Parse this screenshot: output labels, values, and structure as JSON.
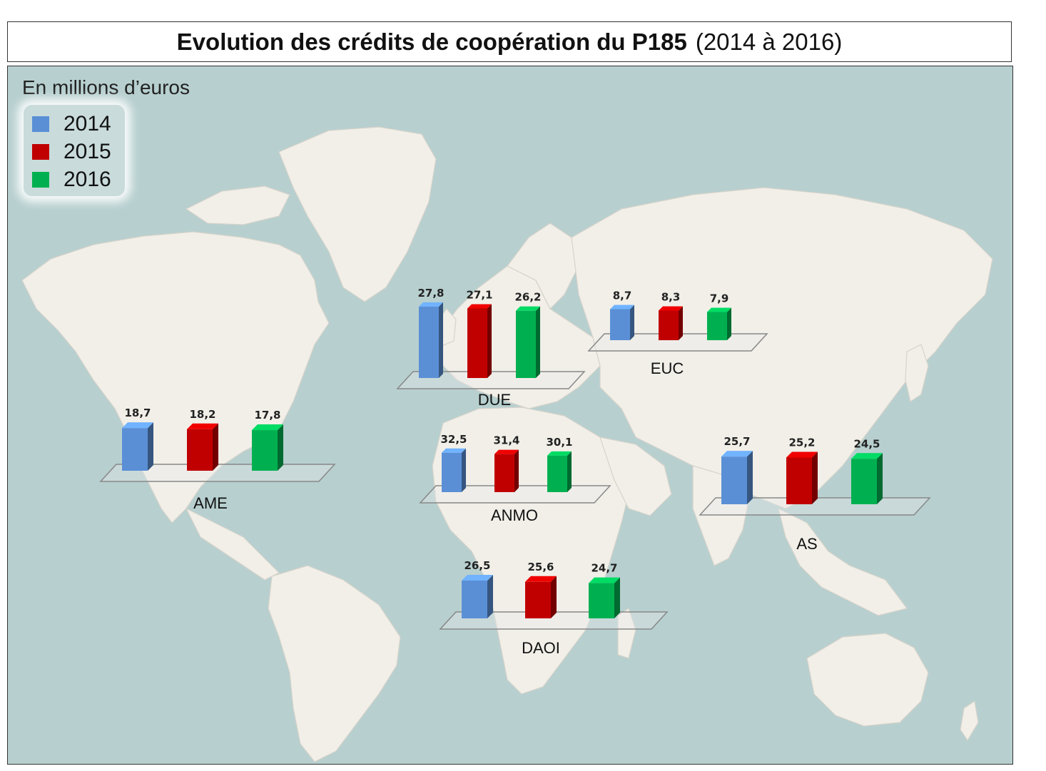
{
  "title": {
    "bold": "Evolution des crédits de coopération du P185",
    "normal": "(2014 à 2016)"
  },
  "unit_label": "En millions d’euros",
  "colors": {
    "ocean": "#b7cfcf",
    "land": "#f1efe8",
    "border": "#d6d3cb",
    "y2014": "#5a8fd6",
    "y2015": "#c00000",
    "y2016": "#00b050"
  },
  "legend": [
    {
      "year": "2014",
      "color": "#5a8fd6"
    },
    {
      "year": "2015",
      "color": "#c00000"
    },
    {
      "year": "2016",
      "color": "#00b050"
    }
  ],
  "chart_data": {
    "type": "bar",
    "categories": [
      "2014",
      "2015",
      "2016"
    ],
    "regions": [
      {
        "name": "DUE",
        "values": [
          27.8,
          27.1,
          26.2
        ],
        "labels": [
          "27,8",
          "27,1",
          "26,2"
        ]
      },
      {
        "name": "EUC",
        "values": [
          8.7,
          8.3,
          7.9
        ],
        "labels": [
          "8,7",
          "8,3",
          "7,9"
        ]
      },
      {
        "name": "AME",
        "values": [
          18.7,
          18.2,
          17.8
        ],
        "labels": [
          "18,7",
          "18,2",
          "17,8"
        ]
      },
      {
        "name": "ANMO",
        "values": [
          32.5,
          31.4,
          30.1
        ],
        "labels": [
          "32,5",
          "31,4",
          "30,1"
        ]
      },
      {
        "name": "AS",
        "values": [
          25.7,
          25.2,
          24.5
        ],
        "labels": [
          "25,7",
          "25,2",
          "24,5"
        ]
      },
      {
        "name": "DAOI",
        "values": [
          26.5,
          25.6,
          24.7
        ],
        "labels": [
          "26,5",
          "25,6",
          "24,7"
        ]
      }
    ]
  }
}
